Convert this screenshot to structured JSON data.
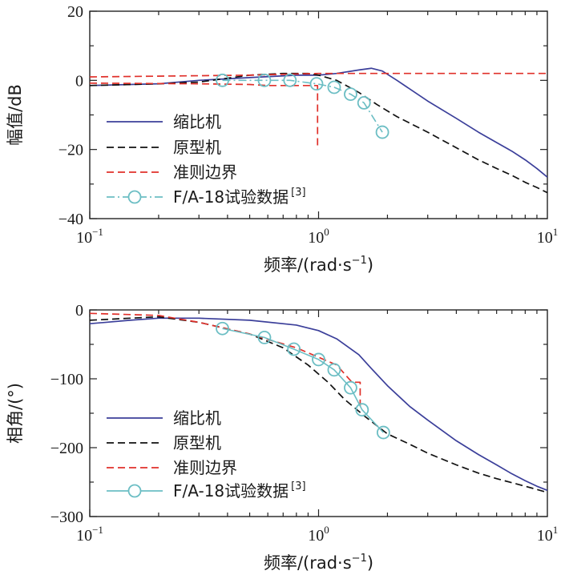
{
  "figure": {
    "colors": {
      "scaled": "#3b3f9a",
      "prototype": "#111111",
      "boundary": "#e0302a",
      "f18": "#6cbec4",
      "axis": "#222222"
    }
  },
  "chart_data": [
    {
      "type": "line",
      "panel": "magnitude",
      "xscale": "log",
      "xlim": [
        0.1,
        10
      ],
      "ylim": [
        -40,
        20
      ],
      "xlabel": "频率/(rad·s",
      "xlabel_sup": "−1",
      "xlabel_tail": ")",
      "ylabel": "幅值/dB",
      "xticks": [
        {
          "value": 0.1,
          "base": "10",
          "exp": "−1"
        },
        {
          "value": 1,
          "base": "10",
          "exp": "0"
        },
        {
          "value": 10,
          "base": "10",
          "exp": "1"
        }
      ],
      "yticks": [
        20,
        0,
        -20,
        -40
      ],
      "legend_position": "bottom-left",
      "series": [
        {
          "key": "scaled",
          "name": "缩比机",
          "style": "solid",
          "points": [
            [
              0.1,
              -1.5
            ],
            [
              0.15,
              -1.2
            ],
            [
              0.2,
              -1
            ],
            [
              0.3,
              0
            ],
            [
              0.5,
              0.8
            ],
            [
              0.8,
              1.5
            ],
            [
              1.0,
              1.5
            ],
            [
              1.2,
              2
            ],
            [
              1.5,
              3
            ],
            [
              1.7,
              3.5
            ],
            [
              1.9,
              2.7
            ],
            [
              2.2,
              0
            ],
            [
              3,
              -6
            ],
            [
              4,
              -11
            ],
            [
              5,
              -15
            ],
            [
              6,
              -18
            ],
            [
              7,
              -20.5
            ],
            [
              8,
              -23
            ],
            [
              9,
              -25.5
            ],
            [
              10,
              -28
            ]
          ]
        },
        {
          "key": "prototype",
          "name": "原型机",
          "style": "dashed",
          "points": [
            [
              0.1,
              -1.5
            ],
            [
              0.2,
              -1
            ],
            [
              0.3,
              -0.5
            ],
            [
              0.5,
              1.5
            ],
            [
              0.7,
              2
            ],
            [
              0.9,
              2
            ],
            [
              1.0,
              1.5
            ],
            [
              1.2,
              0
            ],
            [
              1.5,
              -3.5
            ],
            [
              1.8,
              -7
            ],
            [
              2.2,
              -10.5
            ],
            [
              3,
              -15
            ],
            [
              4,
              -19.5
            ],
            [
              5,
              -23
            ],
            [
              6,
              -25.5
            ],
            [
              7,
              -27.5
            ],
            [
              8,
              -29.5
            ],
            [
              9,
              -31
            ],
            [
              10,
              -32.5
            ]
          ]
        },
        {
          "key": "boundary-lower",
          "name": "准则边界",
          "style": "dashed",
          "points": [
            [
              0.1,
              -0.8
            ],
            [
              0.3,
              -1
            ],
            [
              0.5,
              -1.2
            ],
            [
              0.6,
              -1.5
            ],
            [
              0.99,
              -1.5
            ],
            [
              0.99,
              -20
            ]
          ]
        },
        {
          "key": "boundary-upper",
          "name": "",
          "style": "dashed",
          "points": [
            [
              0.1,
              1
            ],
            [
              0.5,
              1.5
            ],
            [
              1,
              2
            ],
            [
              2,
              2
            ],
            [
              10,
              2
            ]
          ]
        },
        {
          "key": "f18",
          "name": "F/A-18试验数据",
          "name_sup": "[3]",
          "style": "dashdot-circles",
          "points": [
            [
              0.38,
              0
            ],
            [
              0.58,
              0
            ],
            [
              0.75,
              0
            ],
            [
              0.98,
              -1
            ],
            [
              1.17,
              -2
            ],
            [
              1.38,
              -4
            ],
            [
              1.58,
              -6.5
            ],
            [
              1.9,
              -15
            ]
          ]
        }
      ]
    },
    {
      "type": "line",
      "panel": "phase",
      "xscale": "log",
      "xlim": [
        0.1,
        10
      ],
      "ylim": [
        -300,
        0
      ],
      "xlabel": "频率/(rad·s",
      "xlabel_sup": "−1",
      "xlabel_tail": ")",
      "ylabel": "相角/(°)",
      "xticks": [
        {
          "value": 0.1,
          "base": "10",
          "exp": "−1"
        },
        {
          "value": 1,
          "base": "10",
          "exp": "0"
        },
        {
          "value": 10,
          "base": "10",
          "exp": "1"
        }
      ],
      "yticks": [
        0,
        -100,
        -200,
        -300
      ],
      "legend_position": "bottom-left",
      "series": [
        {
          "key": "scaled",
          "name": "缩比机",
          "style": "solid",
          "points": [
            [
              0.1,
              -20
            ],
            [
              0.15,
              -15
            ],
            [
              0.2,
              -12
            ],
            [
              0.3,
              -12
            ],
            [
              0.5,
              -15
            ],
            [
              0.8,
              -22
            ],
            [
              1.0,
              -30
            ],
            [
              1.2,
              -42
            ],
            [
              1.5,
              -65
            ],
            [
              1.7,
              -85
            ],
            [
              2.0,
              -110
            ],
            [
              2.5,
              -140
            ],
            [
              3,
              -160
            ],
            [
              4,
              -190
            ],
            [
              5,
              -210
            ],
            [
              6,
              -225
            ],
            [
              7,
              -238
            ],
            [
              8,
              -248
            ],
            [
              9,
              -256
            ],
            [
              10,
              -262
            ]
          ]
        },
        {
          "key": "prototype",
          "name": "原型机",
          "style": "dashed",
          "points": [
            [
              0.1,
              -15
            ],
            [
              0.15,
              -12
            ],
            [
              0.2,
              -10
            ],
            [
              0.3,
              -18
            ],
            [
              0.5,
              -35
            ],
            [
              0.7,
              -55
            ],
            [
              0.9,
              -80
            ],
            [
              1.1,
              -105
            ],
            [
              1.3,
              -130
            ],
            [
              1.6,
              -155
            ],
            [
              2.0,
              -180
            ],
            [
              2.5,
              -195
            ],
            [
              3,
              -208
            ],
            [
              4,
              -225
            ],
            [
              5,
              -237
            ],
            [
              6,
              -245
            ],
            [
              8,
              -256
            ],
            [
              10,
              -265
            ]
          ]
        },
        {
          "key": "boundary",
          "name": "准则边界",
          "style": "dashed",
          "points": [
            [
              0.1,
              -5
            ],
            [
              0.2,
              -8
            ],
            [
              0.3,
              -18
            ],
            [
              0.5,
              -35
            ],
            [
              0.8,
              -55
            ],
            [
              1.2,
              -80
            ],
            [
              1.4,
              -105
            ],
            [
              1.52,
              -105
            ],
            [
              1.52,
              -140
            ]
          ]
        },
        {
          "key": "f18",
          "name": "F/A-18试验数据",
          "name_sup": "[3]",
          "style": "solid-circles",
          "points": [
            [
              0.38,
              -27
            ],
            [
              0.58,
              -40
            ],
            [
              0.78,
              -57
            ],
            [
              1.0,
              -72
            ],
            [
              1.17,
              -87
            ],
            [
              1.38,
              -113
            ],
            [
              1.55,
              -145
            ],
            [
              1.92,
              -178
            ]
          ]
        }
      ]
    }
  ]
}
